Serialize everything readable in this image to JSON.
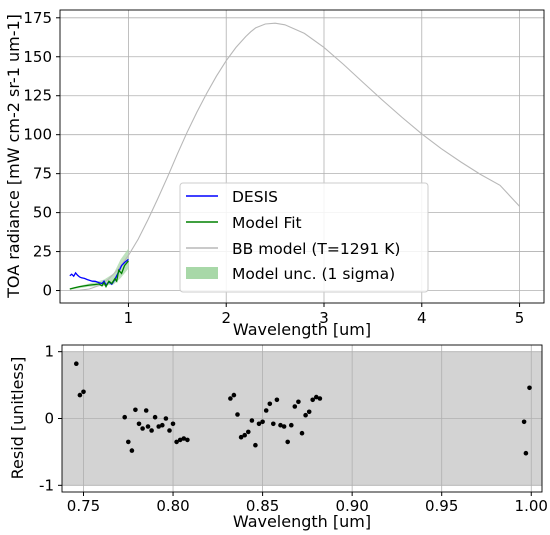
{
  "chart_data": [
    {
      "type": "line",
      "xlabel": "Wavelength [um]",
      "ylabel": "TOA radiance [mW cm-2 sr-1 um-1]",
      "xlim": [
        0.3,
        5.25
      ],
      "ylim": [
        -8,
        180
      ],
      "xticks": [
        1,
        2,
        3,
        4,
        5
      ],
      "yticks": [
        0,
        25,
        50,
        75,
        100,
        125,
        150,
        175
      ],
      "grid": true,
      "legend_position": "lower-center",
      "series": [
        {
          "name": "DESIS",
          "color": "#0000ff",
          "x": [
            0.4,
            0.42,
            0.44,
            0.46,
            0.48,
            0.5,
            0.52,
            0.55,
            0.58,
            0.6,
            0.63,
            0.66,
            0.68,
            0.7,
            0.73,
            0.75,
            0.77,
            0.8,
            0.83,
            0.86,
            0.9,
            0.93,
            0.96,
            1.0
          ],
          "y": [
            9.5,
            10.5,
            9.2,
            11.3,
            9.8,
            8.7,
            8.2,
            7.8,
            7.0,
            6.6,
            6.0,
            5.9,
            5.5,
            5.0,
            4.5,
            6.0,
            3.5,
            5.5,
            4.0,
            7.0,
            12.0,
            16.0,
            18.0,
            20.0
          ]
        },
        {
          "name": "Model Fit",
          "color": "#008000",
          "x": [
            0.4,
            0.45,
            0.5,
            0.55,
            0.6,
            0.65,
            0.7,
            0.73,
            0.75,
            0.77,
            0.8,
            0.83,
            0.86,
            0.88,
            0.9,
            0.93,
            0.96,
            1.0
          ],
          "y": [
            1.0,
            1.8,
            2.5,
            3.0,
            3.5,
            3.8,
            4.2,
            3.0,
            5.0,
            2.5,
            6.0,
            4.5,
            7.5,
            6.0,
            13.0,
            11.0,
            16.0,
            19.0
          ]
        },
        {
          "name": "BB model (T=1291 K)",
          "color": "#b8b8b8",
          "x": [
            0.4,
            0.5,
            0.6,
            0.7,
            0.8,
            0.9,
            1.0,
            1.1,
            1.2,
            1.3,
            1.4,
            1.5,
            1.6,
            1.7,
            1.8,
            1.9,
            2.0,
            2.1,
            2.2,
            2.25,
            2.3,
            2.4,
            2.5,
            2.6,
            2.8,
            3.0,
            3.2,
            3.4,
            3.6,
            3.8,
            4.0,
            4.2,
            4.4,
            4.6,
            4.8,
            5.0
          ],
          "y": [
            0.02,
            0.2,
            1.0,
            3.2,
            7.5,
            14.0,
            22.5,
            33.0,
            45.5,
            59.0,
            73.0,
            87.5,
            101.5,
            114.5,
            126.5,
            137.5,
            147.5,
            156.0,
            163.0,
            166.0,
            168.5,
            171.0,
            171.5,
            170.5,
            165.0,
            156.0,
            145.0,
            133.5,
            122.0,
            111.0,
            100.5,
            91.0,
            82.5,
            74.5,
            67.5,
            54.0
          ]
        }
      ],
      "band": {
        "name": "Model unc. (1 sigma)",
        "color": "#a8d8a8",
        "x": [
          0.4,
          0.6,
          0.75,
          0.85,
          0.92,
          1.0
        ],
        "lower": [
          0.5,
          2.5,
          3.0,
          4.0,
          8.0,
          14.0
        ],
        "upper": [
          1.5,
          4.5,
          7.0,
          11.0,
          20.0,
          27.0
        ]
      }
    },
    {
      "type": "scatter",
      "xlabel": "Wavelength [um]",
      "ylabel": "Resid [unitless]",
      "xlim": [
        0.738,
        1.006
      ],
      "ylim": [
        -1.1,
        1.1
      ],
      "xticks": [
        "0.75",
        "0.80",
        "0.85",
        "0.90",
        "0.95",
        "1.00"
      ],
      "yticks": [
        "-1",
        "0",
        "1"
      ],
      "grid": true,
      "shaded_band": [
        -1,
        1
      ],
      "points": {
        "x": [
          0.746,
          0.748,
          0.75,
          0.773,
          0.775,
          0.777,
          0.779,
          0.781,
          0.783,
          0.785,
          0.786,
          0.788,
          0.79,
          0.792,
          0.794,
          0.796,
          0.798,
          0.8,
          0.802,
          0.804,
          0.806,
          0.808,
          0.832,
          0.834,
          0.836,
          0.838,
          0.84,
          0.842,
          0.844,
          0.846,
          0.848,
          0.85,
          0.852,
          0.854,
          0.856,
          0.858,
          0.86,
          0.862,
          0.864,
          0.866,
          0.868,
          0.87,
          0.872,
          0.874,
          0.876,
          0.878,
          0.88,
          0.882,
          0.996,
          0.997,
          0.999
        ],
        "y": [
          0.82,
          0.35,
          0.4,
          0.02,
          -0.35,
          -0.48,
          0.13,
          -0.08,
          -0.15,
          0.12,
          -0.12,
          -0.18,
          0.02,
          -0.12,
          -0.1,
          0.0,
          -0.18,
          -0.08,
          -0.35,
          -0.32,
          -0.3,
          -0.32,
          0.3,
          0.35,
          0.06,
          -0.28,
          -0.25,
          -0.2,
          -0.03,
          -0.4,
          -0.08,
          -0.05,
          0.12,
          0.22,
          -0.08,
          0.28,
          -0.1,
          -0.12,
          -0.35,
          -0.1,
          0.18,
          0.25,
          -0.22,
          0.05,
          0.1,
          0.28,
          0.32,
          0.3,
          -0.05,
          -0.52,
          0.46
        ]
      }
    }
  ]
}
